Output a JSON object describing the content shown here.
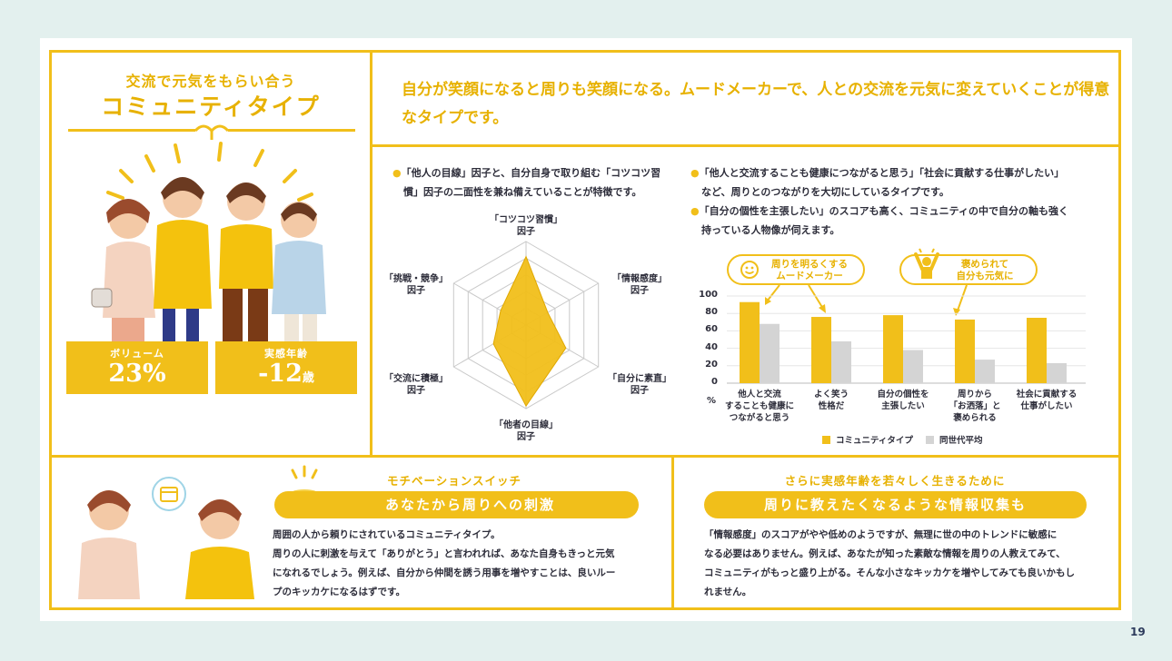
{
  "type": {
    "subtitle": "交流で元気をもらい合う",
    "title": "コミュニティタイプ",
    "intro": "自分が笑顔になると周りも笑顔になる。ムードメーカーで、人との交流を元気に変えていくことが得意なタイプです。"
  },
  "stats": {
    "volume_label": "ボリューム",
    "volume_value": "23%",
    "age_label": "実感年齢",
    "age_value": "-12",
    "age_unit": "歳"
  },
  "radar": {
    "desc_line1": "「他人の目線」因子と、自分自身で取り組む「コツコツ習",
    "desc_line2": "慣」因子の二面性を兼ね備えていることが特徴です。",
    "labels": [
      {
        "l1": "「コツコツ習慣」",
        "l2": "因子"
      },
      {
        "l1": "「情報感度」",
        "l2": "因子"
      },
      {
        "l1": "「自分に素直」",
        "l2": "因子"
      },
      {
        "l1": "「他者の目線」",
        "l2": "因子"
      },
      {
        "l1": "「交流に積極」",
        "l2": "因子"
      },
      {
        "l1": "「挑戦・競争」",
        "l2": "因子"
      }
    ],
    "values": [
      0.82,
      0.3,
      0.55,
      0.97,
      0.45,
      0.35
    ],
    "max": 1
  },
  "right_desc": {
    "b1_l1": "「他人と交流することも健康につながると思う」「社会に貢献する仕事がしたい」",
    "b1_l2": "など、周りとのつながりを大切にしているタイプです。",
    "b2_l1": "「自分の個性を主張したい」のスコアも高く、コミュニティの中で自分の軸も強く",
    "b2_l2": "持っている人物像が伺えます。"
  },
  "callouts": {
    "c1_l1": "周りを明るくする",
    "c1_l2": "ムードメーカー",
    "c2_l1": "褒められて",
    "c2_l2": "自分も元気に"
  },
  "chart_data": {
    "type": "bar",
    "ylabel": "%",
    "ylim": [
      0,
      100
    ],
    "yticks": [
      "100",
      "80",
      "60",
      "40",
      "20",
      "0"
    ],
    "categories": [
      [
        "他人と交流",
        "することも健康に",
        "つながると思う"
      ],
      [
        "よく笑う",
        "性格だ"
      ],
      [
        "自分の個性を",
        "主張したい"
      ],
      [
        "周りから",
        "「お洒落」と",
        "褒められる"
      ],
      [
        "社会に貢献する",
        "仕事がしたい"
      ]
    ],
    "series": [
      {
        "name": "コミュニティタイプ",
        "values": [
          93,
          76,
          78,
          73,
          75
        ],
        "color": "#f1bf1a"
      },
      {
        "name": "同世代平均",
        "values": [
          68,
          48,
          38,
          27,
          23
        ],
        "color": "#d4d4d4"
      }
    ],
    "legend": "bottom"
  },
  "bottom_left": {
    "header": "モチベーションスイッチ",
    "pill": "あなたから周りへの刺激",
    "l1": "周囲の人から頼りにされているコミュニティタイプ。",
    "l2": "周りの人に刺激を与えて「ありがとう」と言われれば、あなた自身もきっと元気",
    "l3": "になれるでしょう。例えば、自分から仲間を誘う用事を増やすことは、良いルー",
    "l4": "プのキッカケになるはずです。"
  },
  "bottom_right": {
    "header": "さらに実感年齢を若々しく生きるために",
    "pill": "周りに教えたくなるような情報収集も",
    "l1": "「情報感度」のスコアがやや低めのようですが、無理に世の中のトレンドに敏感に",
    "l2": "なる必要はありません。例えば、あなたが知った素敵な情報を周りの人教えてみて、",
    "l3": "コミュニティがもっと盛り上がる。そんな小さなキッカケを増やしてみても良いかもし",
    "l4": "れません。"
  },
  "page_number": "19"
}
